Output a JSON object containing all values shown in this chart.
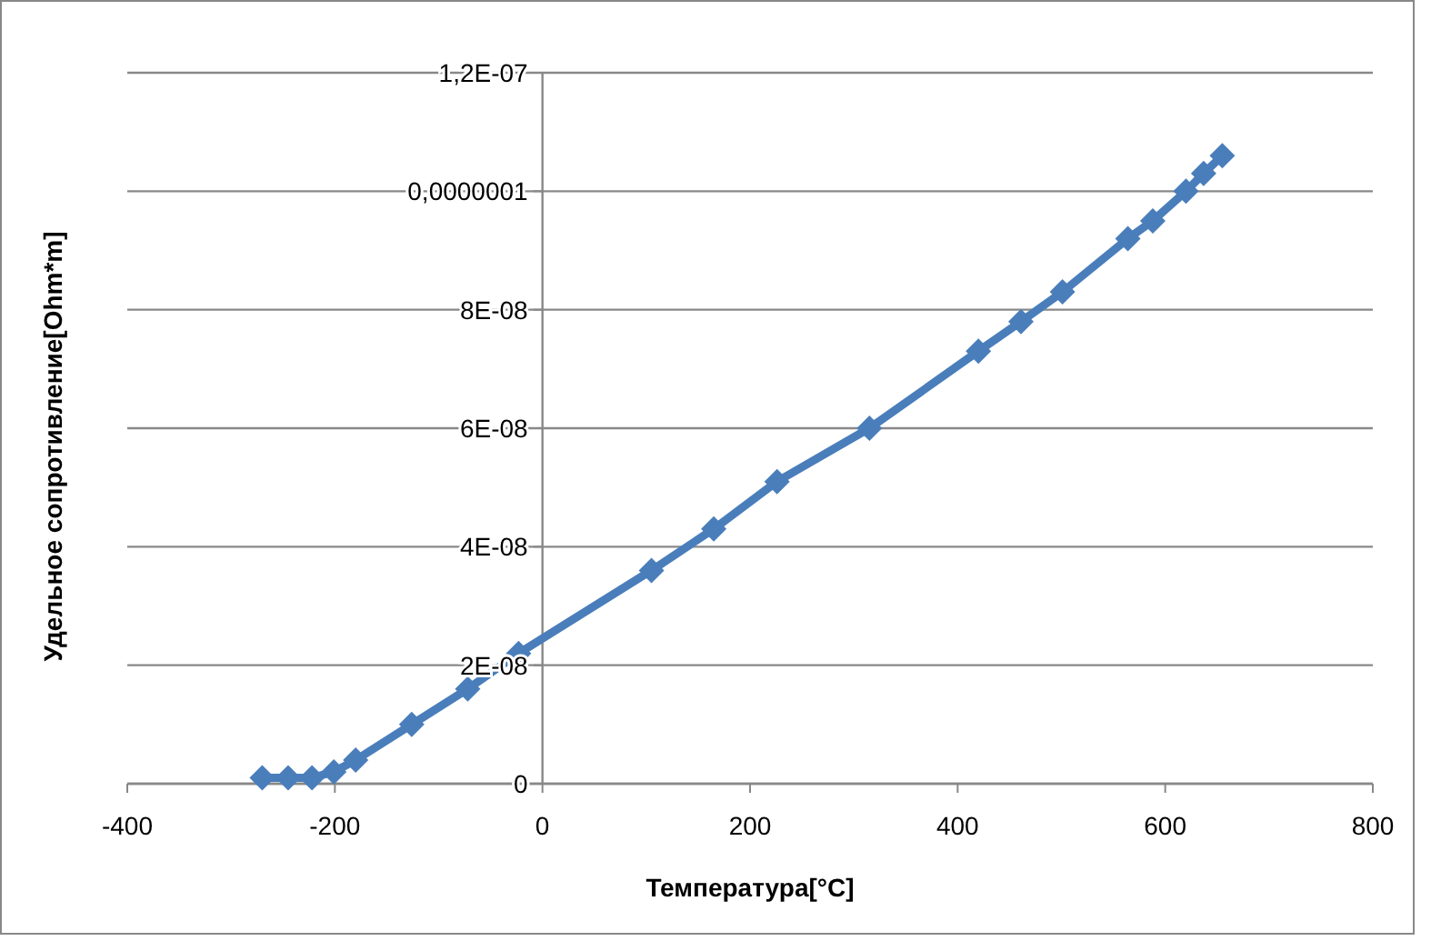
{
  "chart_data": {
    "type": "line",
    "xlabel": "Температура[°C]",
    "ylabel": "Удельное сопротивление[Ohm*m]",
    "x": [
      -270,
      -245,
      -222,
      -201,
      -180,
      -126,
      -72,
      -23,
      105,
      165,
      226,
      315,
      420,
      461,
      501,
      564,
      588,
      620,
      637,
      655
    ],
    "series": [
      {
        "color": "#4a7ebb",
        "values": [
          1e-09,
          1e-09,
          1e-09,
          2e-09,
          4e-09,
          1e-08,
          1.6e-08,
          2.2e-08,
          3.6e-08,
          4.3e-08,
          5.1e-08,
          6e-08,
          7.3e-08,
          7.8e-08,
          8.3e-08,
          9.2e-08,
          9.5e-08,
          1e-07,
          1.03e-07,
          1.06e-07
        ]
      }
    ],
    "xlim": [
      -400,
      800
    ],
    "xticks": [
      -400,
      -200,
      0,
      200,
      400,
      600,
      800
    ],
    "ylim": [
      0,
      1.2e-07
    ],
    "yticks": [
      0,
      {
        "value": 2e-08,
        "label": "2E-08"
      },
      {
        "value": 4e-08,
        "label": "4E-08"
      },
      {
        "value": 6e-08,
        "label": "6E-08"
      },
      {
        "value": 8e-08,
        "label": "8E-08"
      },
      {
        "value": 1e-07,
        "label": "0,0000001"
      },
      {
        "value": 1.2e-07,
        "label": "1,2E-07"
      }
    ],
    "grid": "y",
    "marker": "diamond",
    "line_style": "solid"
  }
}
